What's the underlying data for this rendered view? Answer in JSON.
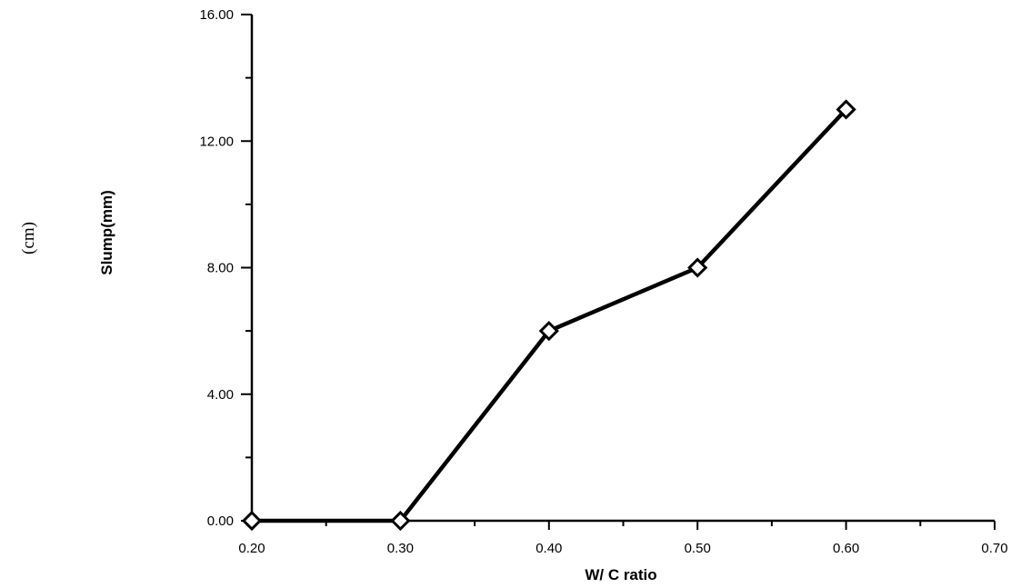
{
  "chart_data": {
    "type": "line",
    "title": "",
    "xlabel": "W/ C ratio",
    "ylabel": "Slump(mm)",
    "ylabel_note": "(cm)",
    "xlim": [
      0.2,
      0.7
    ],
    "ylim": [
      0,
      16
    ],
    "x_major_ticks": [
      0.2,
      0.3,
      0.4,
      0.5,
      0.6,
      0.7
    ],
    "x_minor_ticks": [
      0.25,
      0.35,
      0.45,
      0.55,
      0.65
    ],
    "x_tick_labels": [
      "0.20",
      "0.30",
      "0.40",
      "0.50",
      "0.60",
      "0.70"
    ],
    "y_major_ticks": [
      0,
      4,
      8,
      12,
      16
    ],
    "y_minor_ticks": [
      2,
      6,
      10,
      14
    ],
    "y_tick_labels": [
      "0.00",
      "4.00",
      "8.00",
      "12.00",
      "16.00"
    ],
    "grid": false,
    "legend": "none",
    "marker": "diamond",
    "line_color": "#000000",
    "series": [
      {
        "x": [
          0.2,
          0.3,
          0.4,
          0.5,
          0.6
        ],
        "y": [
          0,
          0,
          6,
          8,
          13
        ]
      }
    ]
  }
}
